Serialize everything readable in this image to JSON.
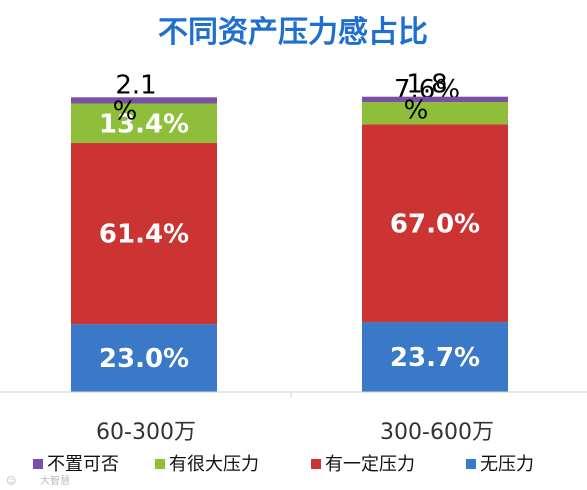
{
  "chart_data": {
    "type": "bar",
    "stacked": true,
    "title": "不同资产压力感占比",
    "categories": [
      "60-300万",
      "300-600万"
    ],
    "series": [
      {
        "name": "无压力",
        "color": "#3a78c8",
        "values": [
          23.0,
          23.7
        ]
      },
      {
        "name": "有一定压力",
        "color": "#cc3333",
        "values": [
          61.4,
          67.0
        ]
      },
      {
        "name": "有很大压力",
        "color": "#8fbf3a",
        "values": [
          13.4,
          7.6
        ]
      },
      {
        "name": "不置可否",
        "color": "#7a4fa8",
        "values": [
          2.1,
          1.8
        ]
      }
    ],
    "data_labels": [
      [
        "23.0%",
        "61.4%",
        "13.4%",
        "2.1 %"
      ],
      [
        "23.7%",
        "67.0%",
        "7.6%",
        "1.8 %"
      ]
    ],
    "legend_order": [
      "不置可否",
      "有很大压力",
      "有一定压力",
      "无压力"
    ],
    "legend_position": "bottom",
    "ylim": [
      0,
      100
    ],
    "grid": false
  },
  "watermark": "大智慧"
}
